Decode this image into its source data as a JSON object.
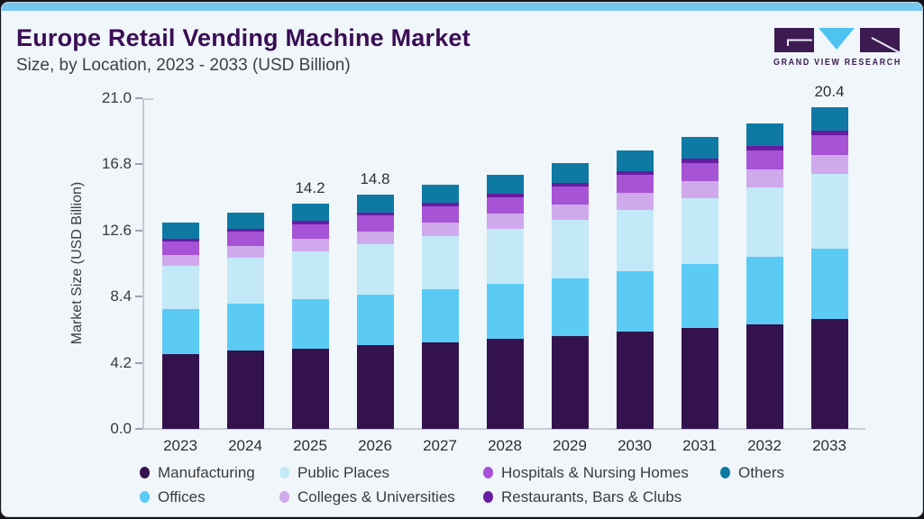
{
  "header": {
    "title": "Europe Retail Vending Machine Market",
    "subtitle": "Size, by Location, 2023 - 2033 (USD Billion)"
  },
  "brand": {
    "name": "GRAND VIEW RESEARCH",
    "colors": {
      "purple": "#3d1b52",
      "blue": "#4ec3f0",
      "mark_line": "#e9ebf3"
    }
  },
  "chart_data": {
    "type": "bar",
    "stacked": true,
    "title": "Europe Retail Vending Machine Market Size, by Location, 2023 - 2033 (USD Billion)",
    "xlabel": "",
    "ylabel": "Market Size (USD Billion)",
    "ylim": [
      0,
      21
    ],
    "yticks": [
      "0.0",
      "4.2",
      "8.4",
      "12.6",
      "16.8",
      "21.0"
    ],
    "grid": false,
    "legend_position": "bottom",
    "categories": [
      "2023",
      "2024",
      "2025",
      "2026",
      "2027",
      "2028",
      "2029",
      "2030",
      "2031",
      "2032",
      "2033"
    ],
    "series": [
      {
        "name": "Manufacturing",
        "color": "#33124e",
        "values": [
          4.75,
          4.95,
          5.1,
          5.3,
          5.5,
          5.7,
          5.9,
          6.15,
          6.4,
          6.65,
          6.95
        ]
      },
      {
        "name": "Offices",
        "color": "#5bcbf6",
        "values": [
          2.85,
          3.0,
          3.1,
          3.2,
          3.35,
          3.5,
          3.65,
          3.85,
          4.05,
          4.25,
          4.5
        ]
      },
      {
        "name": "Public Places",
        "color": "#c3e9f9",
        "values": [
          2.75,
          2.9,
          3.05,
          3.2,
          3.35,
          3.5,
          3.7,
          3.9,
          4.15,
          4.4,
          4.7
        ]
      },
      {
        "name": "Colleges & Universities",
        "color": "#d0a9ec",
        "values": [
          0.7,
          0.74,
          0.78,
          0.82,
          0.87,
          0.93,
          1.0,
          1.05,
          1.1,
          1.16,
          1.22
        ]
      },
      {
        "name": "Hospitals & Nursing Homes",
        "color": "#a653d6",
        "values": [
          0.85,
          0.9,
          0.95,
          1.0,
          1.03,
          1.07,
          1.11,
          1.14,
          1.18,
          1.21,
          1.25
        ]
      },
      {
        "name": "Restaurants, Bars & Clubs",
        "color": "#671ca1",
        "values": [
          0.18,
          0.19,
          0.2,
          0.21,
          0.22,
          0.23,
          0.24,
          0.25,
          0.27,
          0.29,
          0.31
        ]
      },
      {
        "name": "Others",
        "color": "#0e7aa4",
        "values": [
          1.0,
          1.05,
          1.08,
          1.1,
          1.15,
          1.2,
          1.25,
          1.3,
          1.35,
          1.4,
          1.45
        ]
      }
    ],
    "bar_labels": [
      {
        "category": "2025",
        "text": "14.2"
      },
      {
        "category": "2026",
        "text": "14.8"
      },
      {
        "category": "2033",
        "text": "20.4"
      }
    ],
    "legend_rows": [
      [
        0,
        2,
        4,
        6
      ],
      [
        1,
        3,
        5
      ]
    ]
  }
}
